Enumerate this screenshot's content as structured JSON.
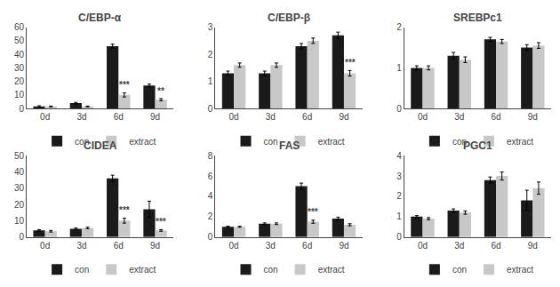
{
  "chart_data": [
    {
      "type": "bar",
      "title": "C/EBP-α",
      "categories": [
        "0d",
        "3d",
        "6d",
        "9d"
      ],
      "series": [
        {
          "name": "con",
          "color": "#1a1a1a",
          "values": [
            1.5,
            4.0,
            46.0,
            17.0
          ],
          "error": [
            0.5,
            0.5,
            1.5,
            1.0
          ]
        },
        {
          "name": "extract",
          "color": "#c8c8c8",
          "values": [
            1.5,
            1.5,
            10.0,
            6.5
          ],
          "error": [
            0.3,
            0.3,
            1.5,
            0.8
          ]
        }
      ],
      "ylim": [
        0,
        60
      ],
      "yticks": [
        0,
        10,
        20,
        30,
        40,
        50,
        60
      ],
      "grid": false,
      "legend": "bottom",
      "annotations": [
        {
          "category": "6d",
          "series": "extract",
          "text": "***"
        },
        {
          "category": "9d",
          "series": "extract",
          "text": "**"
        }
      ]
    },
    {
      "type": "bar",
      "title": "C/EBP-β",
      "categories": [
        "0d",
        "3d",
        "6d",
        "9d"
      ],
      "series": [
        {
          "name": "con",
          "color": "#1a1a1a",
          "values": [
            1.3,
            1.3,
            2.3,
            2.7
          ],
          "error": [
            0.08,
            0.08,
            0.1,
            0.12
          ]
        },
        {
          "name": "extract",
          "color": "#c8c8c8",
          "values": [
            1.6,
            1.6,
            2.5,
            1.3
          ],
          "error": [
            0.08,
            0.08,
            0.1,
            0.1
          ]
        }
      ],
      "ylim": [
        0,
        3
      ],
      "yticks": [
        0,
        1,
        2,
        3
      ],
      "grid": false,
      "legend": "bottom",
      "annotations": [
        {
          "category": "9d",
          "series": "extract",
          "text": "***"
        }
      ]
    },
    {
      "type": "bar",
      "title": "SREBPc1",
      "categories": [
        "0d",
        "3d",
        "6d",
        "9d"
      ],
      "series": [
        {
          "name": "con",
          "color": "#1a1a1a",
          "values": [
            1.0,
            1.3,
            1.7,
            1.5
          ],
          "error": [
            0.05,
            0.08,
            0.05,
            0.07
          ]
        },
        {
          "name": "extract",
          "color": "#c8c8c8",
          "values": [
            1.0,
            1.2,
            1.65,
            1.55
          ],
          "error": [
            0.05,
            0.07,
            0.05,
            0.07
          ]
        }
      ],
      "ylim": [
        0,
        2
      ],
      "yticks": [
        0,
        1,
        2
      ],
      "grid": false,
      "legend": "bottom",
      "annotations": []
    },
    {
      "type": "bar",
      "title": "CIDEA",
      "categories": [
        "0d",
        "3d",
        "6d",
        "9d"
      ],
      "series": [
        {
          "name": "con",
          "color": "#1a1a1a",
          "values": [
            4.0,
            5.0,
            36.0,
            17.0
          ],
          "error": [
            0.5,
            0.5,
            2.0,
            5.0
          ]
        },
        {
          "name": "extract",
          "color": "#c8c8c8",
          "values": [
            3.5,
            5.5,
            10.0,
            4.0
          ],
          "error": [
            0.5,
            0.5,
            1.5,
            0.5
          ]
        }
      ],
      "ylim": [
        0,
        50
      ],
      "yticks": [
        0,
        10,
        20,
        30,
        40,
        50
      ],
      "grid": false,
      "legend": "bottom",
      "annotations": [
        {
          "category": "6d",
          "series": "extract",
          "text": "***"
        },
        {
          "category": "9d",
          "series": "extract",
          "text": "***"
        }
      ]
    },
    {
      "type": "bar",
      "title": "FAS",
      "categories": [
        "0d",
        "3d",
        "6d",
        "9d"
      ],
      "series": [
        {
          "name": "con",
          "color": "#1a1a1a",
          "values": [
            1.0,
            1.3,
            5.0,
            1.8
          ],
          "error": [
            0.05,
            0.08,
            0.3,
            0.15
          ]
        },
        {
          "name": "extract",
          "color": "#c8c8c8",
          "values": [
            1.0,
            1.3,
            1.5,
            1.2
          ],
          "error": [
            0.05,
            0.08,
            0.15,
            0.1
          ]
        }
      ],
      "ylim": [
        0,
        8
      ],
      "yticks": [
        0,
        2,
        4,
        6,
        8
      ],
      "grid": false,
      "legend": "bottom",
      "annotations": [
        {
          "category": "6d",
          "series": "extract",
          "text": "***"
        }
      ]
    },
    {
      "type": "bar",
      "title": "PGC1",
      "categories": [
        "0d",
        "3d",
        "6d",
        "9d"
      ],
      "series": [
        {
          "name": "con",
          "color": "#1a1a1a",
          "values": [
            1.0,
            1.3,
            2.8,
            1.8
          ],
          "error": [
            0.05,
            0.08,
            0.15,
            0.5
          ]
        },
        {
          "name": "extract",
          "color": "#c8c8c8",
          "values": [
            0.9,
            1.2,
            3.0,
            2.4
          ],
          "error": [
            0.05,
            0.08,
            0.2,
            0.3
          ]
        }
      ],
      "ylim": [
        0,
        4
      ],
      "yticks": [
        0,
        1,
        2,
        3,
        4
      ],
      "grid": false,
      "legend": "bottom",
      "annotations": []
    }
  ]
}
